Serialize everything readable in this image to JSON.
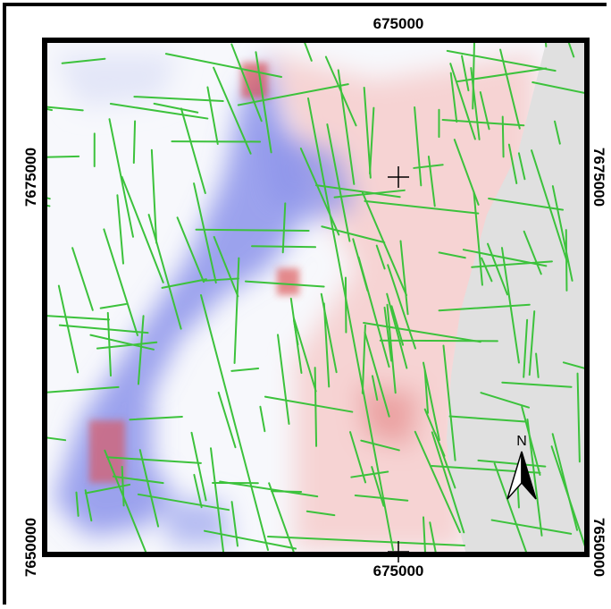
{
  "grid_labels": {
    "top": "675000",
    "bottom": "675000",
    "left_top": "7675000",
    "left_bottom": "7650000",
    "right_top": "7675000",
    "right_bottom": "7650000"
  },
  "north_arrow": "N"
}
